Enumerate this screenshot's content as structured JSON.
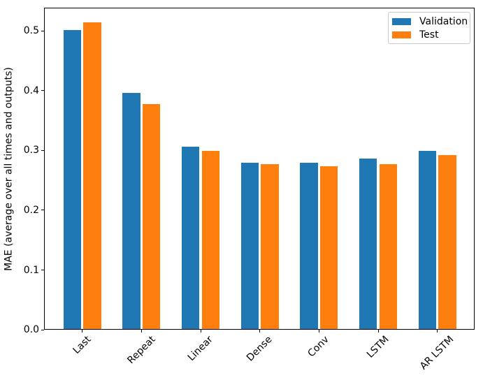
{
  "chart_data": {
    "type": "bar",
    "title": "",
    "xlabel": "",
    "ylabel": "MAE (average over all times and outputs)",
    "categories": [
      "Last",
      "Repeat",
      "Linear",
      "Dense",
      "Conv",
      "LSTM",
      "AR LSTM"
    ],
    "series": [
      {
        "name": "Validation",
        "color": "#1f77b4",
        "values": [
          0.502,
          0.396,
          0.306,
          0.28,
          0.28,
          0.286,
          0.299
        ]
      },
      {
        "name": "Test",
        "color": "#ff7f0e",
        "values": [
          0.515,
          0.378,
          0.299,
          0.277,
          0.274,
          0.277,
          0.292
        ]
      }
    ],
    "ylim": [
      0,
      0.539
    ],
    "yticks": [
      {
        "value": 0.0,
        "label": "0.0"
      },
      {
        "value": 0.1,
        "label": "0.1"
      },
      {
        "value": 0.2,
        "label": "0.2"
      },
      {
        "value": 0.3,
        "label": "0.3"
      },
      {
        "value": 0.4,
        "label": "0.4"
      },
      {
        "value": 0.5,
        "label": "0.5"
      }
    ],
    "bar_width": 0.3,
    "bar_offsets": [
      -0.17,
      0.17
    ],
    "xtick_rotation_deg": 45,
    "grid": false,
    "legend_position": "upper right",
    "axis_color": "#000000",
    "background_color": "#ffffff"
  }
}
